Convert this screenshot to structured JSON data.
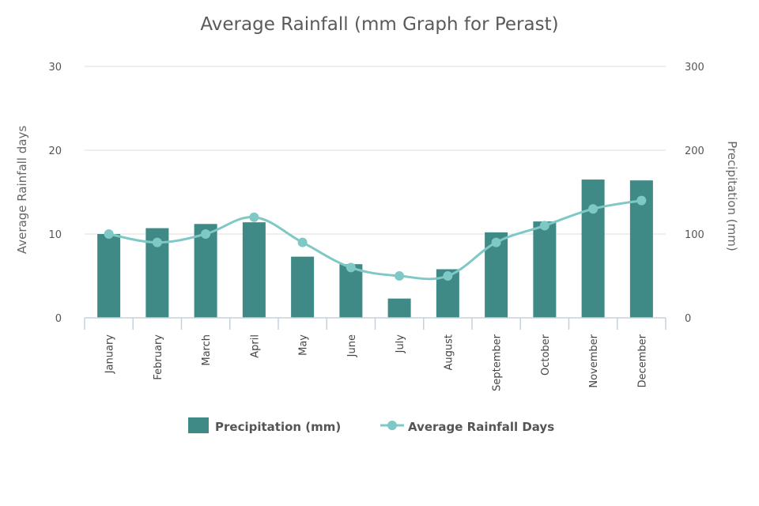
{
  "chart_data": {
    "type": "bar+line",
    "title": "Average Rainfall (mm Graph for Perast)",
    "categories": [
      "January",
      "February",
      "March",
      "April",
      "May",
      "June",
      "July",
      "August",
      "September",
      "October",
      "November",
      "December"
    ],
    "series": [
      {
        "name": "Precipitation (mm)",
        "type": "bar",
        "axis": "right",
        "values": [
          100,
          107,
          112,
          114,
          73,
          64,
          23,
          58,
          102,
          115,
          165,
          164
        ]
      },
      {
        "name": "Average Rainfall Days",
        "type": "line",
        "axis": "left",
        "values": [
          10,
          9,
          10,
          12,
          9,
          6,
          5,
          5,
          9,
          11,
          13,
          14
        ]
      }
    ],
    "y_left": {
      "label": "Average Rainfall days",
      "min": 0,
      "max": 30,
      "ticks": [
        "0",
        "10",
        "20",
        "30"
      ]
    },
    "y_right": {
      "label": "Precipitation (mm)",
      "min": 0,
      "max": 300,
      "ticks": [
        "0",
        "100",
        "200",
        "300"
      ]
    },
    "grid": true,
    "legend": "bottom-center",
    "colors": {
      "bar": "#3f8a87",
      "line": "#7ec8c6",
      "grid": "#dcdcdc",
      "axis": "#c5d0dc"
    }
  }
}
